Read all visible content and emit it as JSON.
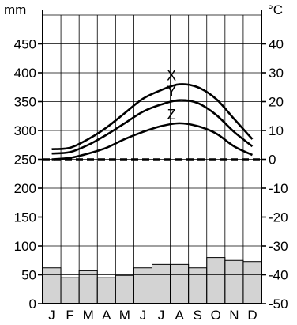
{
  "chart_data": {
    "type": "climate-chart",
    "months": [
      "J",
      "F",
      "M",
      "A",
      "M",
      "J",
      "J",
      "A",
      "S",
      "O",
      "N",
      "D"
    ],
    "left_axis": {
      "unit": "mm",
      "ticks": [
        "0",
        "50",
        "100",
        "150",
        "200",
        "250",
        "300",
        "350",
        "400",
        "450"
      ],
      "range": [
        0,
        500
      ]
    },
    "right_axis": {
      "unit": "°C",
      "ticks": [
        "-50",
        "-40",
        "-30",
        "-20",
        "-10",
        "0",
        "10",
        "20",
        "30",
        "40"
      ],
      "range": [
        -50,
        50
      ]
    },
    "precipitation_mm": [
      62,
      45,
      57,
      45,
      49,
      62,
      68,
      68,
      62,
      80,
      75,
      73
    ],
    "temperature_series": [
      {
        "name": "X",
        "values": [
          3.5,
          4,
          7,
          11,
          16,
          21,
          24,
          26,
          25,
          21,
          14,
          7
        ]
      },
      {
        "name": "Y",
        "values": [
          2,
          2.5,
          5,
          8.5,
          12.5,
          16.5,
          19,
          20.5,
          19.5,
          15.5,
          9.5,
          4.5
        ]
      },
      {
        "name": "Z",
        "values": [
          0,
          0.5,
          2,
          4,
          7,
          9.5,
          11.5,
          12.5,
          11.5,
          9,
          4.5,
          1.5
        ]
      }
    ],
    "zero_line_style": "dashed",
    "grid": true,
    "bar_color": "#d3d3d3"
  }
}
